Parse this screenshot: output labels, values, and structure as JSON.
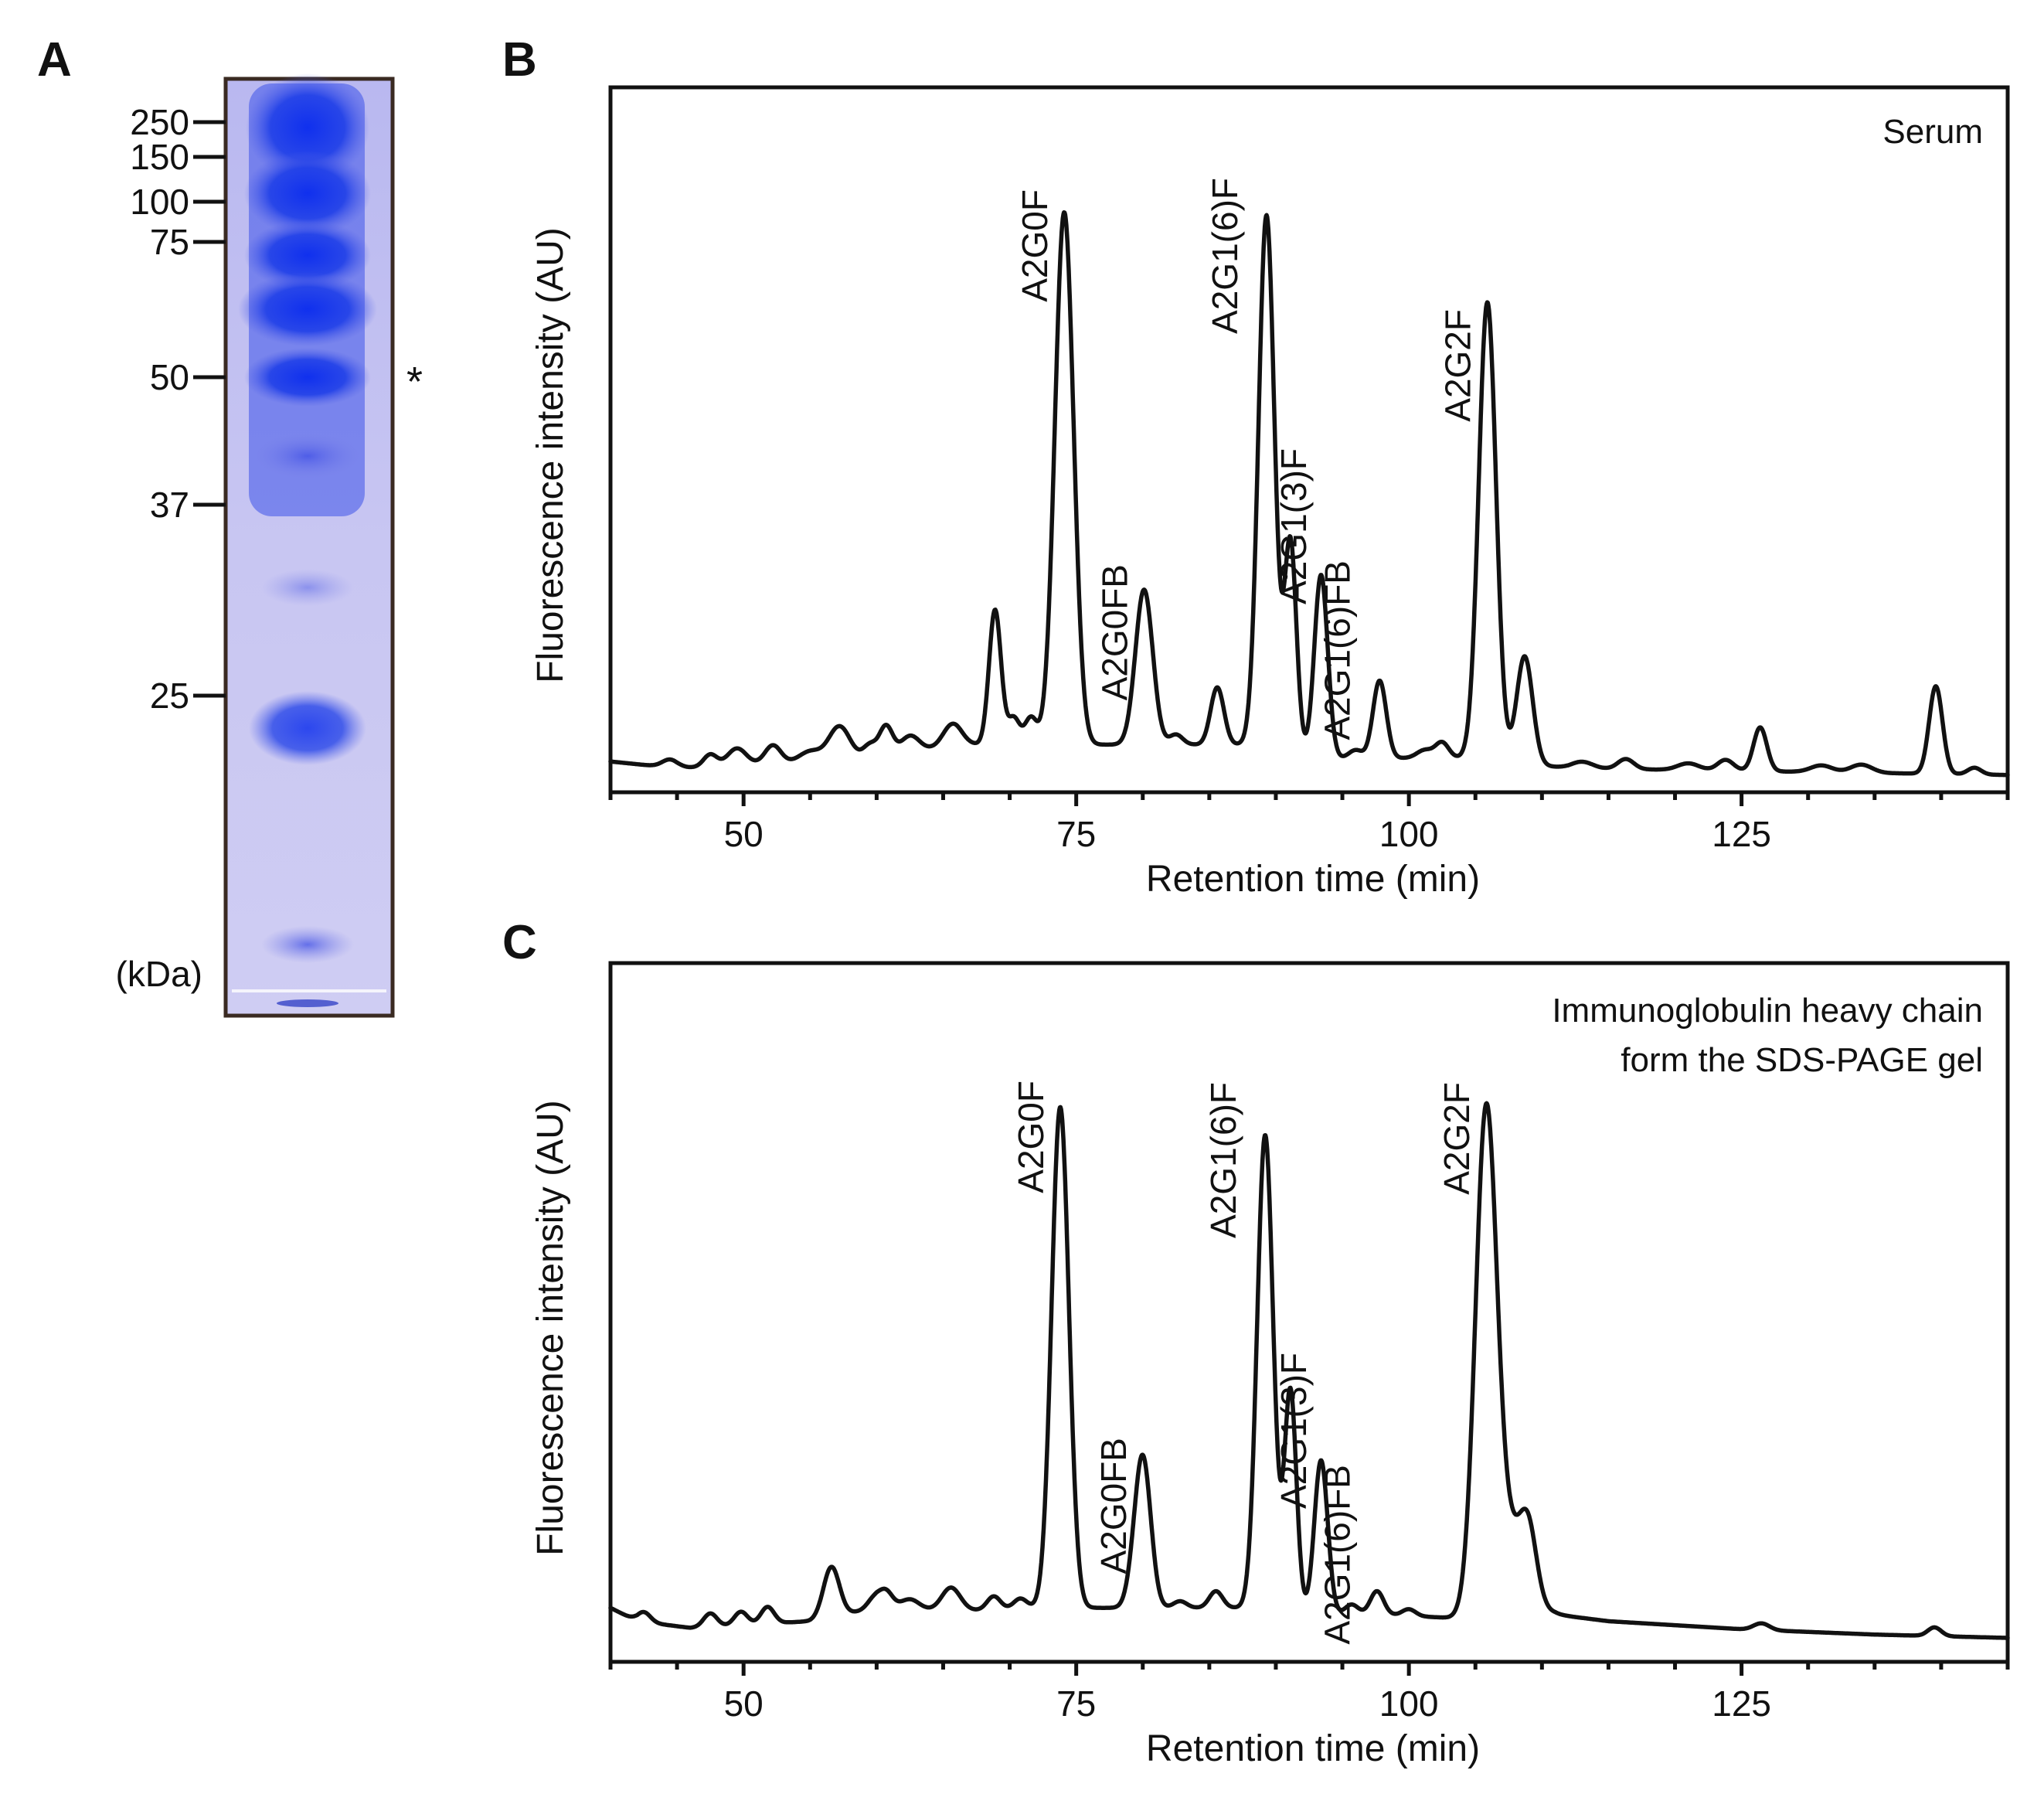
{
  "panel_letters": {
    "a": "A",
    "b": "B",
    "c": "C"
  },
  "gel": {
    "markers": [
      "250",
      "150",
      "100",
      "75",
      "50",
      "37",
      "25"
    ],
    "unit_label": "(kDa)",
    "asterisk": "*",
    "colors": {
      "lane_bg": "#c5c3ef",
      "band": "#1f3fe8",
      "frame": "#3a2a22"
    }
  },
  "chart_data": [
    {
      "type": "line",
      "panel": "B",
      "title": "Serum",
      "xlabel": "Retention time (min)",
      "ylabel": "Fluorescence intensity (AU)",
      "xlim": [
        40,
        145
      ],
      "ylim": [
        0,
        100
      ],
      "xticks": [
        50,
        75,
        100,
        125
      ],
      "baseline": [
        [
          40,
          2.5
        ],
        [
          45,
          1.5
        ],
        [
          60,
          3
        ],
        [
          66,
          5
        ],
        [
          73,
          5
        ],
        [
          80,
          5
        ],
        [
          88,
          5
        ],
        [
          94,
          3
        ],
        [
          104,
          3
        ],
        [
          112,
          1.5
        ],
        [
          145,
          0.5
        ]
      ],
      "peaks": [
        {
          "x": 44.5,
          "h": 1.2,
          "w": 0.6,
          "label": ""
        },
        {
          "x": 47.5,
          "h": 1.8,
          "w": 0.5,
          "label": ""
        },
        {
          "x": 49.5,
          "h": 2.5,
          "w": 0.7,
          "label": ""
        },
        {
          "x": 52.2,
          "h": 2.7,
          "w": 0.6,
          "label": ""
        },
        {
          "x": 55,
          "h": 1.5,
          "w": 0.8,
          "label": ""
        },
        {
          "x": 57.2,
          "h": 5,
          "w": 0.8,
          "label": ""
        },
        {
          "x": 59.5,
          "h": 2,
          "w": 0.5,
          "label": ""
        },
        {
          "x": 60.7,
          "h": 4.5,
          "w": 0.5,
          "label": ""
        },
        {
          "x": 62.5,
          "h": 2.5,
          "w": 0.7,
          "label": ""
        },
        {
          "x": 65.7,
          "h": 3.2,
          "w": 0.7,
          "label": ""
        },
        {
          "x": 68.9,
          "h": 20,
          "w": 0.45,
          "label": ""
        },
        {
          "x": 70.3,
          "h": 4,
          "w": 0.45,
          "label": ""
        },
        {
          "x": 71.6,
          "h": 4,
          "w": 0.45,
          "label": ""
        },
        {
          "x": 74.1,
          "h": 79,
          "w": 0.7,
          "label": "A2G0F"
        },
        {
          "x": 80.1,
          "h": 23,
          "w": 0.65,
          "label": "A2G0FB"
        },
        {
          "x": 82.5,
          "h": 1.5,
          "w": 0.5,
          "label": ""
        },
        {
          "x": 85.6,
          "h": 8.5,
          "w": 0.5,
          "label": ""
        },
        {
          "x": 89.3,
          "h": 79,
          "w": 0.6,
          "label": "A2G1(6)F"
        },
        {
          "x": 91.1,
          "h": 31,
          "w": 0.45,
          "label": "A2G1(3)F"
        },
        {
          "x": 93.4,
          "h": 27,
          "w": 0.5,
          "label": "A2G1(6)FB"
        },
        {
          "x": 96,
          "h": 1.2,
          "w": 0.5,
          "label": ""
        },
        {
          "x": 97.8,
          "h": 11.5,
          "w": 0.5,
          "label": ""
        },
        {
          "x": 101.2,
          "h": 1.2,
          "w": 0.6,
          "label": ""
        },
        {
          "x": 102.5,
          "h": 2.3,
          "w": 0.5,
          "label": ""
        },
        {
          "x": 105.9,
          "h": 68,
          "w": 0.65,
          "label": "A2G2F"
        },
        {
          "x": 108.7,
          "h": 16,
          "w": 0.6,
          "label": ""
        },
        {
          "x": 113,
          "h": 1,
          "w": 0.8,
          "label": ""
        },
        {
          "x": 116.3,
          "h": 1.5,
          "w": 0.6,
          "label": ""
        },
        {
          "x": 121,
          "h": 1,
          "w": 0.8,
          "label": ""
        },
        {
          "x": 123.8,
          "h": 1.6,
          "w": 0.6,
          "label": ""
        },
        {
          "x": 126.4,
          "h": 6.5,
          "w": 0.5,
          "label": ""
        },
        {
          "x": 131,
          "h": 1,
          "w": 0.8,
          "label": ""
        },
        {
          "x": 134,
          "h": 1.2,
          "w": 0.8,
          "label": ""
        },
        {
          "x": 139.6,
          "h": 13,
          "w": 0.5,
          "label": ""
        },
        {
          "x": 142.5,
          "h": 1,
          "w": 0.5,
          "label": ""
        }
      ]
    },
    {
      "type": "line",
      "panel": "C",
      "title": "Immunoglobulin heavy chain form the SDS-PAGE gel",
      "title_lines": [
        "Immunoglobulin heavy chain",
        "form the SDS-PAGE gel"
      ],
      "xlabel": "Retention time (min)",
      "ylabel": "Fluorescence intensity (AU)",
      "xlim": [
        40,
        145
      ],
      "ylim": [
        0,
        100
      ],
      "xticks": [
        50,
        75,
        100,
        125
      ],
      "baseline": [
        [
          40,
          6
        ],
        [
          42,
          4
        ],
        [
          46,
          3
        ],
        [
          55,
          4
        ],
        [
          60,
          6
        ],
        [
          66,
          5.5
        ],
        [
          72,
          6
        ],
        [
          80,
          6
        ],
        [
          88,
          6
        ],
        [
          94,
          5
        ],
        [
          98,
          5
        ],
        [
          103,
          4.5
        ],
        [
          108,
          4.5
        ],
        [
          111,
          5
        ],
        [
          115,
          4
        ],
        [
          125,
          2.8
        ],
        [
          135,
          2
        ],
        [
          145,
          1.5
        ]
      ],
      "peaks": [
        {
          "x": 42.5,
          "h": 1.5,
          "w": 0.5,
          "label": ""
        },
        {
          "x": 47.5,
          "h": 2,
          "w": 0.5,
          "label": ""
        },
        {
          "x": 49.8,
          "h": 2,
          "w": 0.5,
          "label": ""
        },
        {
          "x": 51.8,
          "h": 2.5,
          "w": 0.5,
          "label": ""
        },
        {
          "x": 56.6,
          "h": 7.5,
          "w": 0.6,
          "label": ""
        },
        {
          "x": 59.8,
          "h": 1.5,
          "w": 0.5,
          "label": ""
        },
        {
          "x": 60.7,
          "h": 2.5,
          "w": 0.5,
          "label": ""
        },
        {
          "x": 62.5,
          "h": 1.5,
          "w": 0.7,
          "label": ""
        },
        {
          "x": 65.6,
          "h": 3.5,
          "w": 0.7,
          "label": ""
        },
        {
          "x": 68.8,
          "h": 2,
          "w": 0.5,
          "label": ""
        },
        {
          "x": 70.8,
          "h": 1.5,
          "w": 0.5,
          "label": ""
        },
        {
          "x": 73.8,
          "h": 75,
          "w": 0.65,
          "label": "A2G0F"
        },
        {
          "x": 79.2,
          "h": 1.5,
          "w": 0.5,
          "label": ""
        },
        {
          "x": 80,
          "h": 22.5,
          "w": 0.6,
          "label": "A2G0FB"
        },
        {
          "x": 82.8,
          "h": 1,
          "w": 0.5,
          "label": ""
        },
        {
          "x": 85.5,
          "h": 2.5,
          "w": 0.5,
          "label": ""
        },
        {
          "x": 89.2,
          "h": 71,
          "w": 0.6,
          "label": "A2G1(6)F"
        },
        {
          "x": 91.1,
          "h": 33,
          "w": 0.45,
          "label": "A2G1(3)F"
        },
        {
          "x": 93.4,
          "h": 23,
          "w": 0.5,
          "label": "A2G1(6)FB"
        },
        {
          "x": 95.7,
          "h": 1.5,
          "w": 0.5,
          "label": ""
        },
        {
          "x": 97.6,
          "h": 3.5,
          "w": 0.5,
          "label": ""
        },
        {
          "x": 100,
          "h": 1,
          "w": 0.5,
          "label": ""
        },
        {
          "x": 105.8,
          "h": 74,
          "w": 0.8,
          "label": "A2G2F"
        },
        {
          "x": 107.8,
          "h": 12,
          "w": 1.2,
          "label": ""
        },
        {
          "x": 109,
          "h": 8,
          "w": 0.6,
          "label": ""
        },
        {
          "x": 126.5,
          "h": 1,
          "w": 0.6,
          "label": ""
        },
        {
          "x": 139.5,
          "h": 1.3,
          "w": 0.5,
          "label": ""
        }
      ]
    }
  ]
}
